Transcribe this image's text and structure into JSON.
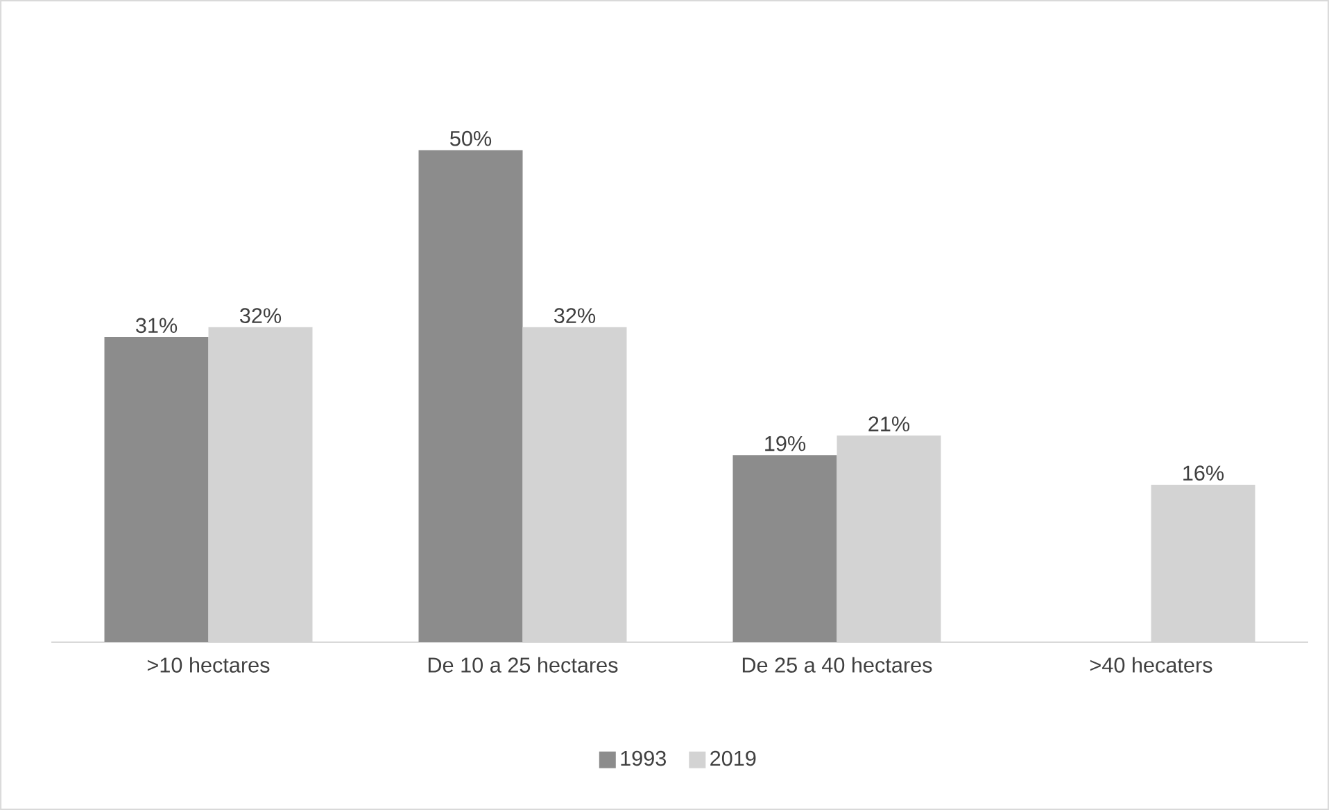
{
  "chart_data": {
    "type": "bar",
    "categories": [
      ">10 hectares",
      "De 10 a 25 hectares",
      "De 25 a 40 hectares",
      ">40 hecaters"
    ],
    "series": [
      {
        "name": "1993",
        "color": "#8c8c8c",
        "values": [
          31,
          50,
          19,
          null
        ],
        "value_labels": [
          "31%",
          "50%",
          "19%",
          null
        ]
      },
      {
        "name": "2019",
        "color": "#d3d3d3",
        "values": [
          32,
          32,
          21,
          16
        ],
        "value_labels": [
          "32%",
          "32%",
          "21%",
          "16%"
        ]
      }
    ],
    "legend": "bottom"
  }
}
